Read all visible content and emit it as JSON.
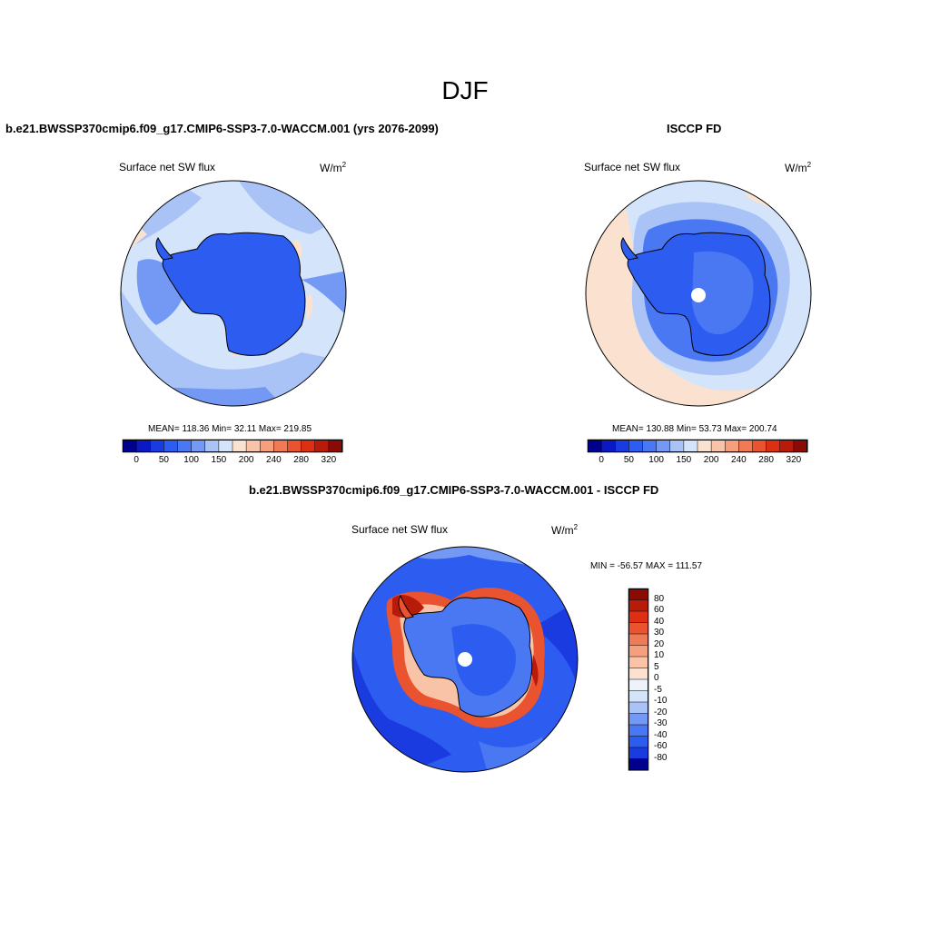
{
  "figure": {
    "title": "DJF"
  },
  "panels": {
    "model": {
      "title": "b.e21.BWSSP370cmip6.f09_g17.CMIP6-SSP3-7.0-WACCM.001 (yrs 2076-2099)",
      "variable": "Surface net SW flux",
      "units_base": "W/m",
      "units_exp": "2",
      "stats_text": "MEAN= 118.36  Min=  32.11  Max= 219.85",
      "stats": {
        "mean": 118.36,
        "min": 32.11,
        "max": 219.85
      }
    },
    "obs": {
      "title": "ISCCP FD",
      "variable": "Surface net SW flux",
      "units_base": "W/m",
      "units_exp": "2",
      "stats_text": "MEAN= 130.88  Min=  53.73  Max= 200.74",
      "stats": {
        "mean": 130.88,
        "min": 53.73,
        "max": 200.74
      }
    },
    "diff": {
      "title": "b.e21.BWSSP370cmip6.f09_g17.CMIP6-SSP3-7.0-WACCM.001 - ISCCP FD",
      "variable": "Surface net SW flux",
      "units_base": "W/m",
      "units_exp": "2",
      "stats_text": "MIN = -56.57 MAX = 111.57",
      "stats": {
        "min": -56.57,
        "max": 111.57
      }
    }
  },
  "colorbars": {
    "abs": {
      "tick_labels": [
        "0",
        "50",
        "100",
        "150",
        "200",
        "240",
        "280",
        "320"
      ],
      "colors": [
        "#00008c",
        "#0a19c4",
        "#1a3be0",
        "#2d5cf0",
        "#4a78f2",
        "#7399f4",
        "#a9c3f7",
        "#d4e4fb",
        "#fbe2d0",
        "#f9c3a8",
        "#f59f7e",
        "#f07a55",
        "#ea5330",
        "#dc2f14",
        "#b81b0a",
        "#8b0a04"
      ]
    },
    "diff": {
      "tick_labels": [
        "80",
        "60",
        "40",
        "30",
        "20",
        "10",
        "5",
        "0",
        "-5",
        "-10",
        "-20",
        "-30",
        "-40",
        "-60",
        "-80"
      ],
      "colors": [
        "#8b0a04",
        "#b81b0a",
        "#dc2f14",
        "#ea5330",
        "#f07a55",
        "#f59f7e",
        "#f9c3a8",
        "#fbe2d0",
        "#eef3fb",
        "#d4e4fb",
        "#a9c3f7",
        "#7399f4",
        "#4a78f2",
        "#2d5cf0",
        "#1a3be0",
        "#00008c"
      ]
    }
  }
}
